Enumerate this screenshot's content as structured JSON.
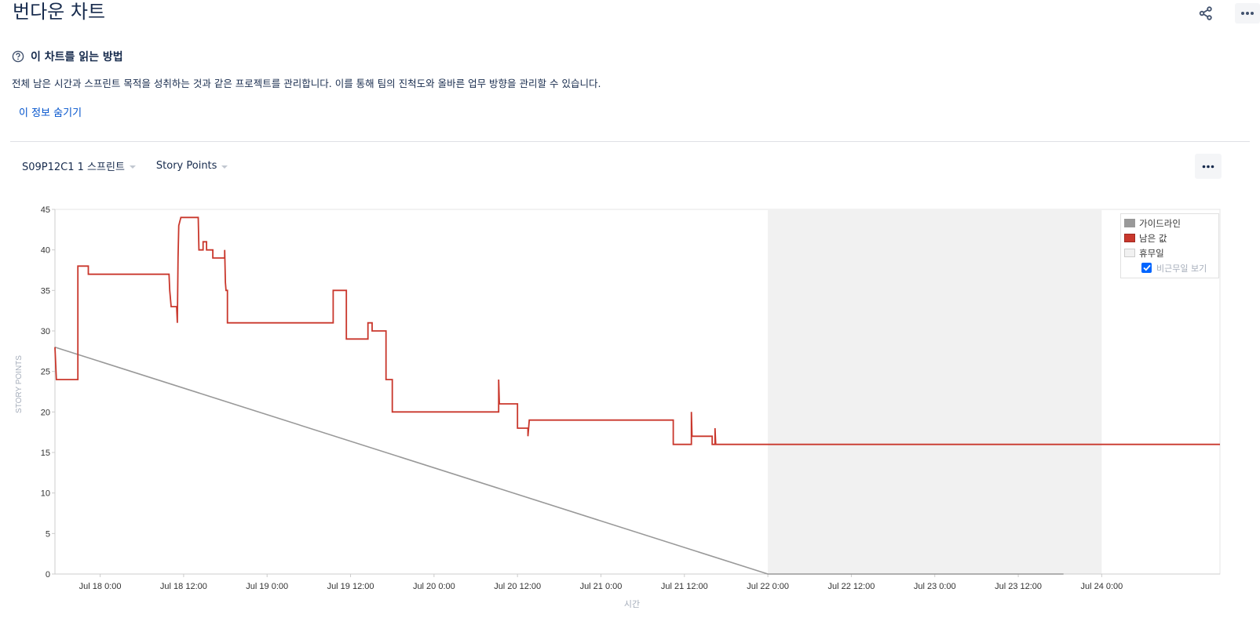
{
  "page": {
    "title": "번다운 차트"
  },
  "help": {
    "heading": "이 차트를 읽는 방법",
    "description": "전체 남은 시간과 스프린트 목적을 성취하는 것과 같은 프로젝트를 관리합니다. 이를 통해 팀의 진척도와 올바른 업무 방향을 관리할 수 있습니다.",
    "hide_link": "이 정보 숨기기"
  },
  "filters": {
    "sprint": "S09P12C1 1 스프린트",
    "estimate": "Story Points"
  },
  "legend": {
    "guideline": "가이드라인",
    "remaining": "남은 값",
    "non_working": "휴무일",
    "show_non_working": "비근무일 보기"
  },
  "colors": {
    "remaining": "#c9372c",
    "guideline": "#999999",
    "non_working": "#f1f1f1",
    "link": "#0052cc"
  },
  "chart_data": {
    "type": "line",
    "title": "",
    "xlabel": "시간",
    "ylabel": "STORY POINTS",
    "ylim": [
      0,
      45
    ],
    "y_ticks": [
      0,
      5,
      10,
      15,
      20,
      25,
      30,
      35,
      40,
      45
    ],
    "x_range_hours": [
      -6.5,
      161
    ],
    "x_ticks": [
      {
        "label": "Jul 18 0:00",
        "hour": 0
      },
      {
        "label": "Jul 18 12:00",
        "hour": 12
      },
      {
        "label": "Jul 19 0:00",
        "hour": 24
      },
      {
        "label": "Jul 19 12:00",
        "hour": 36
      },
      {
        "label": "Jul 20 0:00",
        "hour": 48
      },
      {
        "label": "Jul 20 12:00",
        "hour": 60
      },
      {
        "label": "Jul 21 0:00",
        "hour": 72
      },
      {
        "label": "Jul 21 12:00",
        "hour": 84
      },
      {
        "label": "Jul 22 0:00",
        "hour": 96
      },
      {
        "label": "Jul 22 12:00",
        "hour": 108
      },
      {
        "label": "Jul 23 0:00",
        "hour": 120
      },
      {
        "label": "Jul 23 12:00",
        "hour": 132
      },
      {
        "label": "Jul 24 0:00",
        "hour": 144
      }
    ],
    "non_working_range_hours": [
      96,
      144
    ],
    "grid": false,
    "legend_position": "top-right",
    "series": [
      {
        "name": "가이드라인",
        "points": [
          [
            -6.5,
            28
          ],
          [
            96,
            0
          ],
          [
            138.5,
            0
          ]
        ]
      },
      {
        "name": "남은 값",
        "step": true,
        "points": [
          [
            -6.5,
            28
          ],
          [
            -6.3,
            24
          ],
          [
            -3.2,
            24
          ],
          [
            -3.2,
            38
          ],
          [
            -1.7,
            38
          ],
          [
            -1.7,
            37
          ],
          [
            9.9,
            37
          ],
          [
            10.0,
            35
          ],
          [
            10.2,
            33
          ],
          [
            11.0,
            33
          ],
          [
            11.1,
            31
          ],
          [
            11.2,
            39
          ],
          [
            11.3,
            43
          ],
          [
            11.6,
            44
          ],
          [
            14.1,
            44
          ],
          [
            14.2,
            40
          ],
          [
            14.8,
            40
          ],
          [
            14.8,
            41
          ],
          [
            15.3,
            41
          ],
          [
            15.3,
            40
          ],
          [
            16.2,
            40
          ],
          [
            16.2,
            39
          ],
          [
            17.9,
            39
          ],
          [
            17.9,
            40
          ],
          [
            18.0,
            36
          ],
          [
            18.1,
            35
          ],
          [
            18.3,
            35
          ],
          [
            18.3,
            31
          ],
          [
            33.5,
            31
          ],
          [
            33.5,
            35
          ],
          [
            35.4,
            35
          ],
          [
            35.4,
            29
          ],
          [
            38.5,
            29
          ],
          [
            38.5,
            31
          ],
          [
            39.1,
            31
          ],
          [
            39.1,
            30
          ],
          [
            41.1,
            30
          ],
          [
            41.1,
            24
          ],
          [
            42.0,
            24
          ],
          [
            42.0,
            20
          ],
          [
            57.3,
            20
          ],
          [
            57.3,
            24
          ],
          [
            57.4,
            21
          ],
          [
            60.0,
            21
          ],
          [
            60.0,
            18
          ],
          [
            61.5,
            18
          ],
          [
            61.5,
            17
          ],
          [
            61.7,
            19
          ],
          [
            82.4,
            19
          ],
          [
            82.4,
            16
          ],
          [
            85.0,
            16
          ],
          [
            85.0,
            20
          ],
          [
            85.1,
            17
          ],
          [
            88.0,
            17
          ],
          [
            88.0,
            16
          ],
          [
            88.4,
            16
          ],
          [
            88.4,
            18
          ],
          [
            88.5,
            16
          ],
          [
            161,
            16
          ]
        ]
      }
    ]
  }
}
